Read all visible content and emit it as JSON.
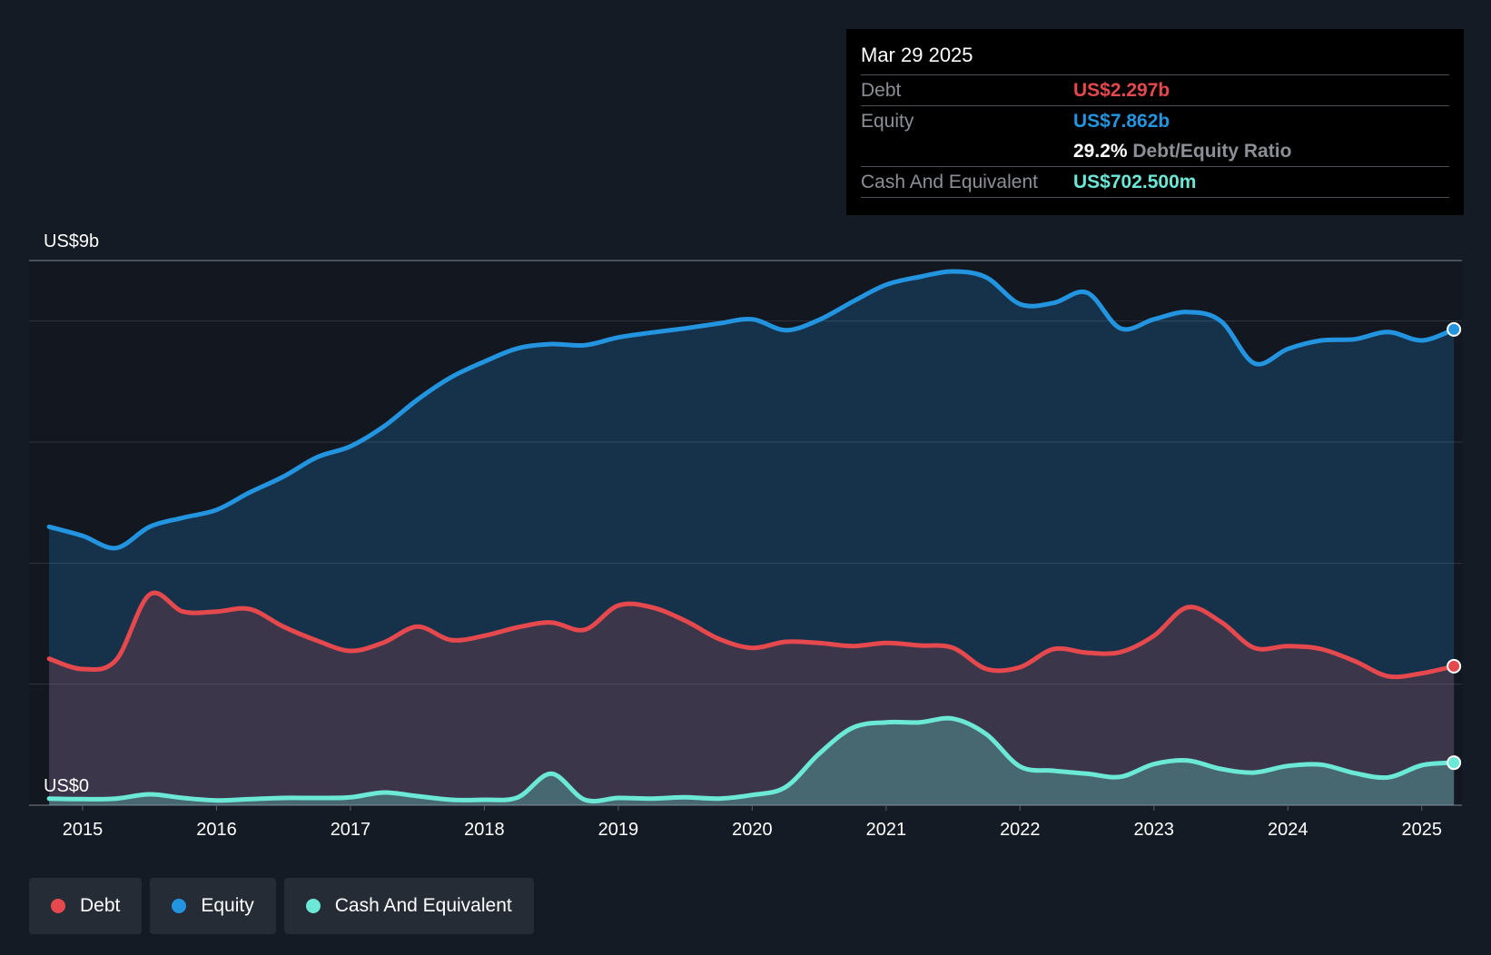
{
  "colors": {
    "debt": "#e5484d",
    "equity": "#2394df",
    "cash": "#6ce8d6",
    "background": "#151b24",
    "plot_background": "#121720"
  },
  "tooltip": {
    "date": "Mar 29 2025",
    "debt_label": "Debt",
    "debt_value": "US$2.297b",
    "equity_label": "Equity",
    "equity_value": "US$7.862b",
    "ratio_value": "29.2%",
    "ratio_label": "Debt/Equity Ratio",
    "cash_label": "Cash And Equivalent",
    "cash_value": "US$702.500m"
  },
  "legend": {
    "items": [
      {
        "label": "Debt",
        "color": "#e5484d"
      },
      {
        "label": "Equity",
        "color": "#2394df"
      },
      {
        "label": "Cash And Equivalent",
        "color": "#6ce8d6"
      }
    ]
  },
  "chart_data": {
    "type": "area",
    "title": "",
    "xlabel": "",
    "ylabel": "",
    "xlim": [
      2014.6,
      2025.3
    ],
    "ylim": [
      0,
      9
    ],
    "y_tick_labels": [
      {
        "value": 9,
        "label": "US$9b"
      },
      {
        "value": 0,
        "label": "US$0"
      }
    ],
    "gridlines": [
      0,
      2,
      4,
      6,
      8,
      9
    ],
    "x_ticks": [
      {
        "value": 2015,
        "label": "2015"
      },
      {
        "value": 2016,
        "label": "2016"
      },
      {
        "value": 2017,
        "label": "2017"
      },
      {
        "value": 2018,
        "label": "2018"
      },
      {
        "value": 2019,
        "label": "2019"
      },
      {
        "value": 2020,
        "label": "2020"
      },
      {
        "value": 2021,
        "label": "2021"
      },
      {
        "value": 2022,
        "label": "2022"
      },
      {
        "value": 2023,
        "label": "2023"
      },
      {
        "value": 2024,
        "label": "2024"
      },
      {
        "value": 2025,
        "label": "2025"
      }
    ],
    "series": [
      {
        "name": "Equity",
        "key": "equity",
        "x": [
          2014.75,
          2015.0,
          2015.25,
          2015.5,
          2015.75,
          2016.0,
          2016.25,
          2016.5,
          2016.75,
          2017.0,
          2017.25,
          2017.5,
          2017.75,
          2018.0,
          2018.25,
          2018.5,
          2018.75,
          2019.0,
          2019.25,
          2019.5,
          2019.75,
          2020.0,
          2020.25,
          2020.5,
          2020.75,
          2021.0,
          2021.25,
          2021.5,
          2021.75,
          2022.0,
          2022.25,
          2022.5,
          2022.75,
          2023.0,
          2023.25,
          2023.5,
          2023.75,
          2024.0,
          2024.25,
          2024.5,
          2024.75,
          2025.0,
          2025.24
        ],
        "values": [
          4.6,
          4.45,
          4.25,
          4.6,
          4.75,
          4.88,
          5.17,
          5.43,
          5.75,
          5.93,
          6.26,
          6.7,
          7.07,
          7.33,
          7.55,
          7.62,
          7.6,
          7.73,
          7.81,
          7.88,
          7.96,
          8.03,
          7.85,
          8.02,
          8.32,
          8.6,
          8.73,
          8.82,
          8.72,
          8.28,
          8.3,
          8.47,
          7.88,
          8.03,
          8.15,
          8.0,
          7.3,
          7.54,
          7.68,
          7.7,
          7.82,
          7.68,
          7.862
        ]
      },
      {
        "name": "Debt",
        "key": "debt",
        "x": [
          2014.75,
          2015.0,
          2015.25,
          2015.5,
          2015.75,
          2016.0,
          2016.25,
          2016.5,
          2016.75,
          2017.0,
          2017.25,
          2017.5,
          2017.75,
          2018.0,
          2018.25,
          2018.5,
          2018.75,
          2019.0,
          2019.25,
          2019.5,
          2019.75,
          2020.0,
          2020.25,
          2020.5,
          2020.75,
          2021.0,
          2021.25,
          2021.5,
          2021.75,
          2022.0,
          2022.25,
          2022.5,
          2022.75,
          2023.0,
          2023.25,
          2023.5,
          2023.75,
          2024.0,
          2024.25,
          2024.5,
          2024.75,
          2025.0,
          2025.24
        ],
        "values": [
          2.42,
          2.25,
          2.4,
          3.48,
          3.2,
          3.2,
          3.24,
          2.95,
          2.72,
          2.55,
          2.69,
          2.95,
          2.73,
          2.8,
          2.94,
          3.02,
          2.9,
          3.3,
          3.27,
          3.05,
          2.75,
          2.6,
          2.7,
          2.68,
          2.63,
          2.68,
          2.64,
          2.6,
          2.25,
          2.28,
          2.58,
          2.52,
          2.53,
          2.8,
          3.27,
          3.03,
          2.6,
          2.63,
          2.58,
          2.38,
          2.13,
          2.18,
          2.297
        ]
      },
      {
        "name": "Cash And Equivalent",
        "key": "cash",
        "x": [
          2014.75,
          2015.0,
          2015.25,
          2015.5,
          2015.75,
          2016.0,
          2016.25,
          2016.5,
          2016.75,
          2017.0,
          2017.25,
          2017.5,
          2017.75,
          2018.0,
          2018.25,
          2018.5,
          2018.75,
          2019.0,
          2019.25,
          2019.5,
          2019.75,
          2020.0,
          2020.25,
          2020.5,
          2020.75,
          2021.0,
          2021.25,
          2021.5,
          2021.75,
          2022.0,
          2022.25,
          2022.5,
          2022.75,
          2023.0,
          2023.25,
          2023.5,
          2023.75,
          2024.0,
          2024.25,
          2024.5,
          2024.75,
          2025.0,
          2025.24
        ],
        "values": [
          0.11,
          0.1,
          0.11,
          0.18,
          0.12,
          0.08,
          0.1,
          0.12,
          0.12,
          0.13,
          0.21,
          0.15,
          0.09,
          0.09,
          0.13,
          0.52,
          0.09,
          0.12,
          0.11,
          0.13,
          0.11,
          0.17,
          0.3,
          0.85,
          1.28,
          1.37,
          1.37,
          1.43,
          1.17,
          0.64,
          0.57,
          0.52,
          0.47,
          0.68,
          0.74,
          0.6,
          0.54,
          0.65,
          0.67,
          0.53,
          0.46,
          0.66,
          0.7025
        ]
      }
    ]
  }
}
